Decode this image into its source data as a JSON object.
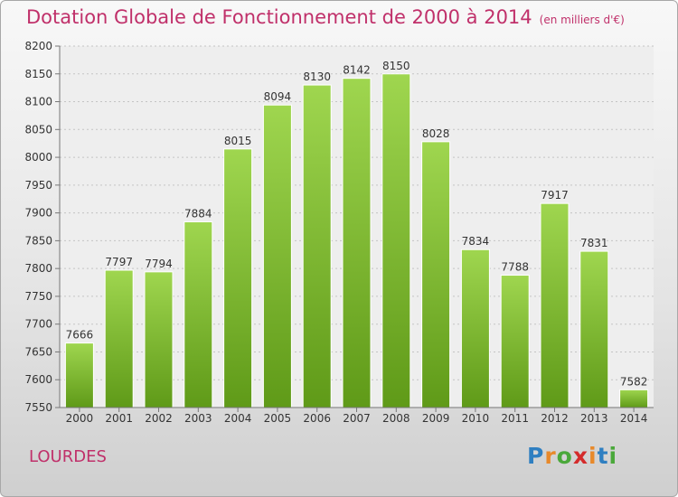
{
  "title": "Dotation Globale de Fonctionnement de 2000 à 2014",
  "unit": "(en milliers d'€)",
  "commune": "LOURDES",
  "logo": {
    "letters": [
      "P",
      "r",
      "o",
      "x",
      "i",
      "t",
      "i"
    ],
    "colors": [
      "#2f7fc1",
      "#e8892a",
      "#4aa83a",
      "#d42b2b",
      "#e8892a",
      "#2f7fc1",
      "#4aa83a"
    ]
  },
  "colors": {
    "title": "#c0306a",
    "bar_top": "#9fd64f",
    "bar_bottom": "#5f9a18",
    "plot_bg": "#eeeeee"
  },
  "chart_data": {
    "type": "bar",
    "title": "Dotation Globale de Fonctionnement de 2000 à 2014",
    "subtitle": "(en milliers d'€)",
    "categories": [
      "2000",
      "2001",
      "2002",
      "2003",
      "2004",
      "2005",
      "2006",
      "2007",
      "2008",
      "2009",
      "2010",
      "2011",
      "2012",
      "2013",
      "2014"
    ],
    "values": [
      7666,
      7797,
      7794,
      7884,
      8015,
      8094,
      8130,
      8142,
      8150,
      8028,
      7834,
      7788,
      7917,
      7831,
      7582
    ],
    "ylim": [
      7550,
      8200
    ],
    "yticks": [
      7550,
      7600,
      7650,
      7700,
      7750,
      7800,
      7850,
      7900,
      7950,
      8000,
      8050,
      8100,
      8150,
      8200
    ],
    "grid": true,
    "data_labels": true
  }
}
